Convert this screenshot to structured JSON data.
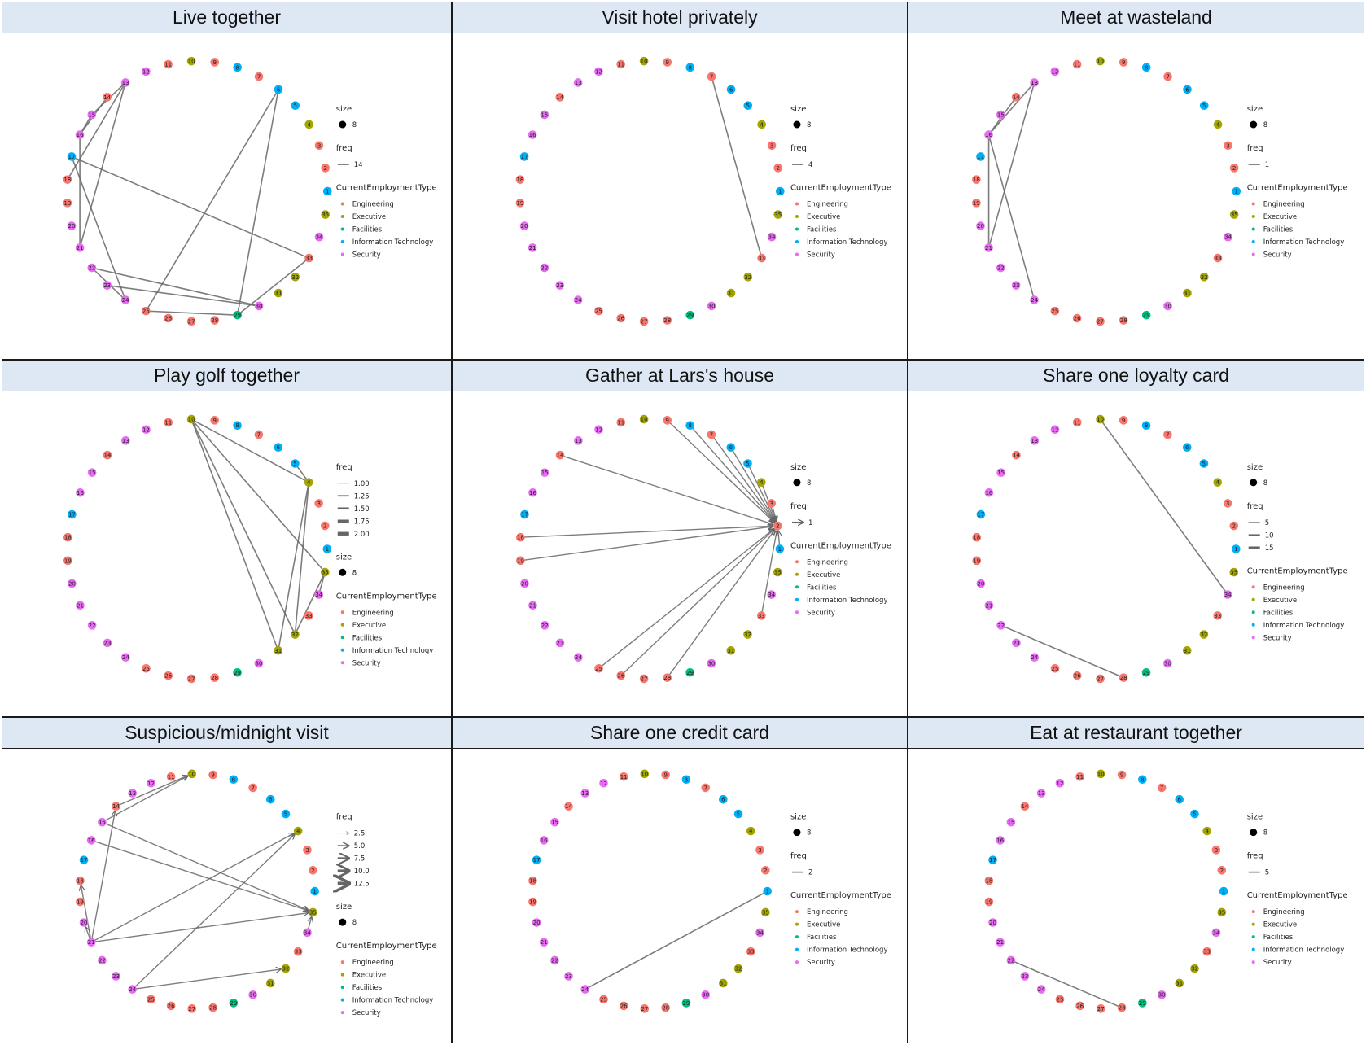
{
  "colors": {
    "Engineering": "#F8766D",
    "Executive": "#A3A500",
    "Facilities": "#00BF7D",
    "Information Technology": "#00B0F6",
    "Security": "#E76BF3",
    "edge": "#666666",
    "header_bg": "#dde8f4"
  },
  "node_types": {
    "1": "Information Technology",
    "2": "Engineering",
    "3": "Engineering",
    "4": "Executive",
    "5": "Information Technology",
    "6": "Information Technology",
    "7": "Engineering",
    "8": "Information Technology",
    "9": "Engineering",
    "10": "Executive",
    "11": "Engineering",
    "12": "Security",
    "13": "Security",
    "14": "Engineering",
    "15": "Security",
    "16": "Security",
    "17": "Information Technology",
    "18": "Engineering",
    "19": "Engineering",
    "20": "Security",
    "21": "Security",
    "22": "Security",
    "23": "Security",
    "24": "Security",
    "25": "Engineering",
    "26": "Engineering",
    "27": "Engineering",
    "28": "Engineering",
    "29": "Facilities",
    "30": "Security",
    "31": "Executive",
    "32": "Executive",
    "33": "Engineering",
    "34": "Security",
    "35": "Executive"
  },
  "legend_categories": [
    "Engineering",
    "Executive",
    "Facilities",
    "Information Technology",
    "Security"
  ],
  "legend_labels": {
    "size_title": "size",
    "freq_title": "freq",
    "type_title": "CurrentEmploymentType",
    "size_value": "8"
  },
  "panels": [
    {
      "title": "Live together",
      "directed": false,
      "freq_legend": [
        "14"
      ],
      "legend_order": "size-freq-type",
      "edges": [
        [
          13,
          18
        ],
        [
          13,
          21
        ],
        [
          13,
          15
        ],
        [
          14,
          16
        ],
        [
          15,
          16
        ],
        [
          16,
          21
        ],
        [
          17,
          33
        ],
        [
          17,
          24
        ],
        [
          22,
          30
        ],
        [
          23,
          30
        ],
        [
          22,
          24
        ],
        [
          6,
          25
        ],
        [
          6,
          29
        ],
        [
          25,
          29
        ],
        [
          29,
          33
        ]
      ]
    },
    {
      "title": "Visit hotel privately",
      "directed": false,
      "freq_legend": [
        "4"
      ],
      "legend_order": "size-freq-type",
      "edges": [
        [
          7,
          33
        ]
      ]
    },
    {
      "title": "Meet at wasteland",
      "directed": false,
      "freq_legend": [
        "1"
      ],
      "legend_order": "size-freq-type",
      "edges": [
        [
          14,
          16
        ],
        [
          13,
          16
        ],
        [
          13,
          21
        ],
        [
          16,
          21
        ],
        [
          16,
          24
        ]
      ]
    },
    {
      "title": "Play golf together",
      "directed": false,
      "freq_legend": [
        "1.00",
        "1.25",
        "1.50",
        "1.75",
        "2.00"
      ],
      "legend_order": "freq-size-type",
      "edges": [
        [
          10,
          4
        ],
        [
          10,
          35
        ],
        [
          10,
          32
        ],
        [
          10,
          31
        ],
        [
          4,
          32
        ],
        [
          4,
          31
        ],
        [
          35,
          32
        ],
        [
          35,
          34
        ],
        [
          4,
          5
        ]
      ]
    },
    {
      "title": "Gather at Lars's house",
      "directed": true,
      "freq_legend": [
        "1"
      ],
      "legend_order": "size-freq-type",
      "edges": [
        [
          9,
          2
        ],
        [
          8,
          2
        ],
        [
          7,
          2
        ],
        [
          6,
          2
        ],
        [
          5,
          2
        ],
        [
          4,
          2
        ],
        [
          3,
          2
        ],
        [
          14,
          2
        ],
        [
          18,
          2
        ],
        [
          19,
          2
        ],
        [
          25,
          2
        ],
        [
          26,
          2
        ],
        [
          28,
          2
        ],
        [
          33,
          2
        ],
        [
          1,
          2
        ]
      ]
    },
    {
      "title": "Share one loyalty card",
      "directed": false,
      "freq_legend": [
        "5",
        "10",
        "15"
      ],
      "legend_order": "size-freq-type",
      "edges": [
        [
          10,
          34
        ],
        [
          22,
          28
        ]
      ]
    },
    {
      "title": "Suspicious/midnight visit",
      "directed": true,
      "freq_legend": [
        "2.5",
        "5.0",
        "7.5",
        "10.0",
        "12.5"
      ],
      "legend_order": "freq-size-type",
      "edges": [
        [
          15,
          10
        ],
        [
          14,
          10
        ],
        [
          15,
          35
        ],
        [
          16,
          35
        ],
        [
          21,
          35
        ],
        [
          21,
          4
        ],
        [
          24,
          4
        ],
        [
          24,
          32
        ],
        [
          21,
          14
        ],
        [
          21,
          18
        ],
        [
          21,
          20
        ],
        [
          34,
          35
        ]
      ]
    },
    {
      "title": "Share one credit card",
      "directed": false,
      "freq_legend": [
        "2"
      ],
      "legend_order": "size-freq-type",
      "edges": [
        [
          24,
          1
        ]
      ]
    },
    {
      "title": "Eat at restaurant together",
      "directed": false,
      "freq_legend": [
        "5"
      ],
      "legend_order": "size-freq-type",
      "edges": [
        [
          22,
          28
        ]
      ]
    }
  ]
}
